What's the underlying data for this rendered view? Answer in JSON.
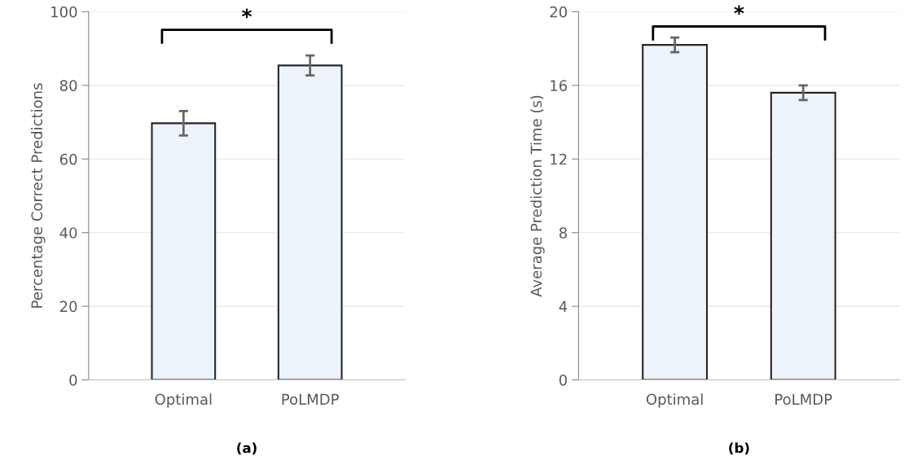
{
  "chart_data": [
    {
      "type": "bar",
      "ylabel": "Percentage Correct Predictions",
      "categories": [
        "Optimal",
        "PoLMDP"
      ],
      "values": [
        69.7,
        85.4
      ],
      "errors": [
        3.3,
        2.7
      ],
      "color": "#edf3fb",
      "ylim": [
        0,
        100
      ],
      "yticks": [
        0,
        20,
        40,
        60,
        80,
        100
      ],
      "grid": "y",
      "annotations": [
        "*",
        "(a)"
      ]
    },
    {
      "type": "bar",
      "ylabel": "Average Prediction Time (s)",
      "categories": [
        "Optimal",
        "PoLMDP"
      ],
      "values": [
        18.2,
        15.6
      ],
      "errors": [
        0.4,
        0.4
      ],
      "color": "#edf3fb",
      "ylim": [
        0,
        20
      ],
      "yticks": [
        0,
        4,
        8,
        12,
        16,
        20
      ],
      "grid": "y",
      "annotations": [
        "*",
        "(b)"
      ]
    }
  ]
}
